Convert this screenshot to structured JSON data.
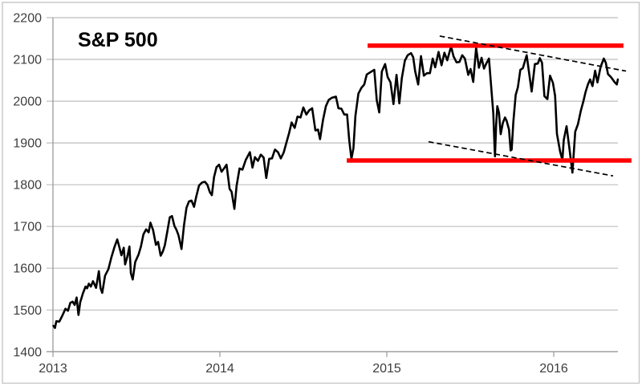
{
  "colors": {
    "background": "#ffffff",
    "price_line": "#000000",
    "level_line": "#ff0000",
    "trend_line": "#000000",
    "gridline": "#bdbdbd",
    "axis": "#9a9a9a",
    "tick_label": "#3d3d3d",
    "border": "#c6c6c6",
    "title": "#000000"
  },
  "chart_data": {
    "type": "line",
    "title": "S&P 500",
    "xlabel": "",
    "ylabel": "",
    "grid": "horizontal-on",
    "legend": "none",
    "x_axis": {
      "min": 2013.0,
      "max": 2016.3846,
      "ticks": [
        2013,
        2014,
        2015,
        2016
      ],
      "labels": [
        "2013",
        "2014",
        "2015",
        "2016"
      ]
    },
    "y_axis": {
      "min": 1400,
      "max": 2200,
      "ticks": [
        2200,
        2100,
        2000,
        1900,
        1800,
        1700,
        1600,
        1500,
        1400
      ],
      "labels": [
        "2200",
        "2100",
        "2000",
        "1900",
        "1800",
        "1700",
        "1600",
        "1500",
        "1400"
      ]
    },
    "levels": [
      {
        "name": "resistance-line",
        "value": 2133,
        "t_start": 2014.885,
        "t_end": 2016.418,
        "color": "#ff0000"
      },
      {
        "name": "support-line",
        "value": 1858,
        "t_start": 2014.76,
        "t_end": 2016.466,
        "color": "#ff0000"
      }
    ],
    "trendlines": [
      {
        "name": "upper-trendline",
        "from": [
          2015.317,
          2156
        ],
        "to": [
          2016.433,
          2072
        ],
        "style": "dashed",
        "color": "#000000"
      },
      {
        "name": "lower-trendline",
        "from": [
          2015.25,
          1903
        ],
        "to": [
          2016.356,
          1821
        ],
        "style": "dashed",
        "color": "#000000"
      }
    ],
    "series": [
      {
        "name": "S&P 500 close",
        "color": "#000000",
        "points": [
          [
            2013.003,
            1462
          ],
          [
            2013.012,
            1457
          ],
          [
            2013.02,
            1473
          ],
          [
            2013.038,
            1472
          ],
          [
            2013.056,
            1486
          ],
          [
            2013.075,
            1503
          ],
          [
            2013.09,
            1498
          ],
          [
            2013.104,
            1517
          ],
          [
            2013.118,
            1520
          ],
          [
            2013.13,
            1512
          ],
          [
            2013.142,
            1530
          ],
          [
            2013.149,
            1502
          ],
          [
            2013.153,
            1488
          ],
          [
            2013.163,
            1518
          ],
          [
            2013.18,
            1540
          ],
          [
            2013.195,
            1556
          ],
          [
            2013.205,
            1552
          ],
          [
            2013.215,
            1563
          ],
          [
            2013.227,
            1556
          ],
          [
            2013.24,
            1569
          ],
          [
            2013.258,
            1553
          ],
          [
            2013.275,
            1593
          ],
          [
            2013.285,
            1552
          ],
          [
            2013.295,
            1541
          ],
          [
            2013.312,
            1582
          ],
          [
            2013.332,
            1598
          ],
          [
            2013.35,
            1626
          ],
          [
            2013.368,
            1650
          ],
          [
            2013.385,
            1669
          ],
          [
            2013.398,
            1650
          ],
          [
            2013.41,
            1631
          ],
          [
            2013.424,
            1649
          ],
          [
            2013.432,
            1609
          ],
          [
            2013.445,
            1627
          ],
          [
            2013.458,
            1652
          ],
          [
            2013.467,
            1588
          ],
          [
            2013.478,
            1573
          ],
          [
            2013.493,
            1615
          ],
          [
            2013.512,
            1632
          ],
          [
            2013.527,
            1652
          ],
          [
            2013.542,
            1681
          ],
          [
            2013.558,
            1693
          ],
          [
            2013.573,
            1686
          ],
          [
            2013.584,
            1709
          ],
          [
            2013.6,
            1691
          ],
          [
            2013.617,
            1656
          ],
          [
            2013.63,
            1663
          ],
          [
            2013.645,
            1630
          ],
          [
            2013.658,
            1640
          ],
          [
            2013.67,
            1655
          ],
          [
            2013.685,
            1688
          ],
          [
            2013.7,
            1722
          ],
          [
            2013.713,
            1725
          ],
          [
            2013.728,
            1701
          ],
          [
            2013.74,
            1692
          ],
          [
            2013.752,
            1679
          ],
          [
            2013.765,
            1656
          ],
          [
            2013.77,
            1646
          ],
          [
            2013.785,
            1703
          ],
          [
            2013.8,
            1745
          ],
          [
            2013.815,
            1760
          ],
          [
            2013.83,
            1762
          ],
          [
            2013.845,
            1747
          ],
          [
            2013.858,
            1771
          ],
          [
            2013.875,
            1798
          ],
          [
            2013.893,
            1805
          ],
          [
            2013.91,
            1807
          ],
          [
            2013.925,
            1800
          ],
          [
            2013.94,
            1782
          ],
          [
            2013.952,
            1775
          ],
          [
            2013.965,
            1818
          ],
          [
            2013.98,
            1842
          ],
          [
            2013.995,
            1848
          ],
          [
            2014.01,
            1831
          ],
          [
            2014.025,
            1839
          ],
          [
            2014.04,
            1848
          ],
          [
            2014.058,
            1790
          ],
          [
            2014.07,
            1783
          ],
          [
            2014.087,
            1742
          ],
          [
            2014.1,
            1797
          ],
          [
            2014.118,
            1839
          ],
          [
            2014.135,
            1836
          ],
          [
            2014.155,
            1859
          ],
          [
            2014.18,
            1878
          ],
          [
            2014.195,
            1841
          ],
          [
            2014.21,
            1866
          ],
          [
            2014.228,
            1857
          ],
          [
            2014.245,
            1872
          ],
          [
            2014.262,
            1865
          ],
          [
            2014.278,
            1816
          ],
          [
            2014.295,
            1862
          ],
          [
            2014.312,
            1863
          ],
          [
            2014.33,
            1884
          ],
          [
            2014.348,
            1878
          ],
          [
            2014.365,
            1863
          ],
          [
            2014.382,
            1877
          ],
          [
            2014.398,
            1900
          ],
          [
            2014.415,
            1924
          ],
          [
            2014.43,
            1949
          ],
          [
            2014.448,
            1936
          ],
          [
            2014.465,
            1963
          ],
          [
            2014.483,
            1961
          ],
          [
            2014.5,
            1985
          ],
          [
            2014.518,
            1968
          ],
          [
            2014.535,
            1978
          ],
          [
            2014.553,
            1983
          ],
          [
            2014.572,
            1930
          ],
          [
            2014.588,
            1932
          ],
          [
            2014.6,
            1909
          ],
          [
            2014.618,
            1955
          ],
          [
            2014.635,
            1988
          ],
          [
            2014.652,
            2003
          ],
          [
            2014.67,
            2008
          ],
          [
            2014.695,
            2011
          ],
          [
            2014.71,
            1983
          ],
          [
            2014.728,
            1982
          ],
          [
            2014.745,
            1968
          ],
          [
            2014.762,
            1968
          ],
          [
            2014.775,
            1906
          ],
          [
            2014.788,
            1862
          ],
          [
            2014.8,
            1887
          ],
          [
            2014.812,
            1965
          ],
          [
            2014.83,
            2018
          ],
          [
            2014.848,
            2032
          ],
          [
            2014.865,
            2040
          ],
          [
            2014.88,
            2064
          ],
          [
            2014.9,
            2069
          ],
          [
            2014.925,
            2075
          ],
          [
            2014.94,
            2002
          ],
          [
            2014.955,
            1973
          ],
          [
            2014.97,
            2071
          ],
          [
            2014.99,
            2089
          ],
          [
            2015.005,
            2058
          ],
          [
            2015.022,
            2045
          ],
          [
            2015.04,
            1993
          ],
          [
            2015.058,
            2063
          ],
          [
            2015.075,
            1995
          ],
          [
            2015.09,
            2055
          ],
          [
            2015.108,
            2097
          ],
          [
            2015.125,
            2110
          ],
          [
            2015.145,
            2115
          ],
          [
            2015.158,
            2105
          ],
          [
            2015.17,
            2071
          ],
          [
            2015.188,
            2040
          ],
          [
            2015.205,
            2108
          ],
          [
            2015.222,
            2061
          ],
          [
            2015.24,
            2067
          ],
          [
            2015.258,
            2067
          ],
          [
            2015.275,
            2102
          ],
          [
            2015.29,
            2081
          ],
          [
            2015.31,
            2118
          ],
          [
            2015.328,
            2086
          ],
          [
            2015.345,
            2116
          ],
          [
            2015.362,
            2098
          ],
          [
            2015.385,
            2131
          ],
          [
            2015.4,
            2107
          ],
          [
            2015.418,
            2093
          ],
          [
            2015.435,
            2094
          ],
          [
            2015.452,
            2110
          ],
          [
            2015.468,
            2102
          ],
          [
            2015.488,
            2063
          ],
          [
            2015.502,
            2077
          ],
          [
            2015.518,
            2046
          ],
          [
            2015.535,
            2128
          ],
          [
            2015.552,
            2080
          ],
          [
            2015.568,
            2104
          ],
          [
            2015.582,
            2078
          ],
          [
            2015.598,
            2092
          ],
          [
            2015.612,
            2102
          ],
          [
            2015.625,
            2036
          ],
          [
            2015.638,
            1971
          ],
          [
            2015.645,
            1894
          ],
          [
            2015.648,
            1868
          ],
          [
            2015.655,
            1941
          ],
          [
            2015.662,
            1988
          ],
          [
            2015.672,
            1972
          ],
          [
            2015.682,
            1921
          ],
          [
            2015.695,
            1948
          ],
          [
            2015.708,
            1961
          ],
          [
            2015.718,
            1953
          ],
          [
            2015.732,
            1932
          ],
          [
            2015.742,
            1882
          ],
          [
            2015.748,
            1884
          ],
          [
            2015.758,
            1951
          ],
          [
            2015.772,
            2015
          ],
          [
            2015.785,
            2033
          ],
          [
            2015.8,
            2075
          ],
          [
            2015.815,
            2079
          ],
          [
            2015.838,
            2110
          ],
          [
            2015.868,
            2023
          ],
          [
            2015.887,
            2089
          ],
          [
            2015.905,
            2090
          ],
          [
            2015.917,
            2103
          ],
          [
            2015.93,
            2092
          ],
          [
            2015.944,
            2012
          ],
          [
            2015.962,
            2005
          ],
          [
            2015.978,
            2061
          ],
          [
            2015.995,
            2044
          ],
          [
            2016.008,
            2013
          ],
          [
            2016.019,
            1922
          ],
          [
            2016.038,
            1880
          ],
          [
            2016.052,
            1859
          ],
          [
            2016.06,
            1907
          ],
          [
            2016.077,
            1940
          ],
          [
            2016.096,
            1880
          ],
          [
            2016.112,
            1829
          ],
          [
            2016.129,
            1927
          ],
          [
            2016.145,
            1945
          ],
          [
            2016.163,
            1978
          ],
          [
            2016.178,
            2000
          ],
          [
            2016.191,
            2022
          ],
          [
            2016.205,
            2040
          ],
          [
            2016.218,
            2052
          ],
          [
            2016.232,
            2036
          ],
          [
            2016.248,
            2073
          ],
          [
            2016.262,
            2045
          ],
          [
            2016.281,
            2082
          ],
          [
            2016.3,
            2102
          ],
          [
            2016.312,
            2092
          ],
          [
            2016.325,
            2065
          ],
          [
            2016.344,
            2057
          ],
          [
            2016.364,
            2046
          ],
          [
            2016.378,
            2040
          ],
          [
            2016.384,
            2052
          ]
        ]
      }
    ]
  }
}
